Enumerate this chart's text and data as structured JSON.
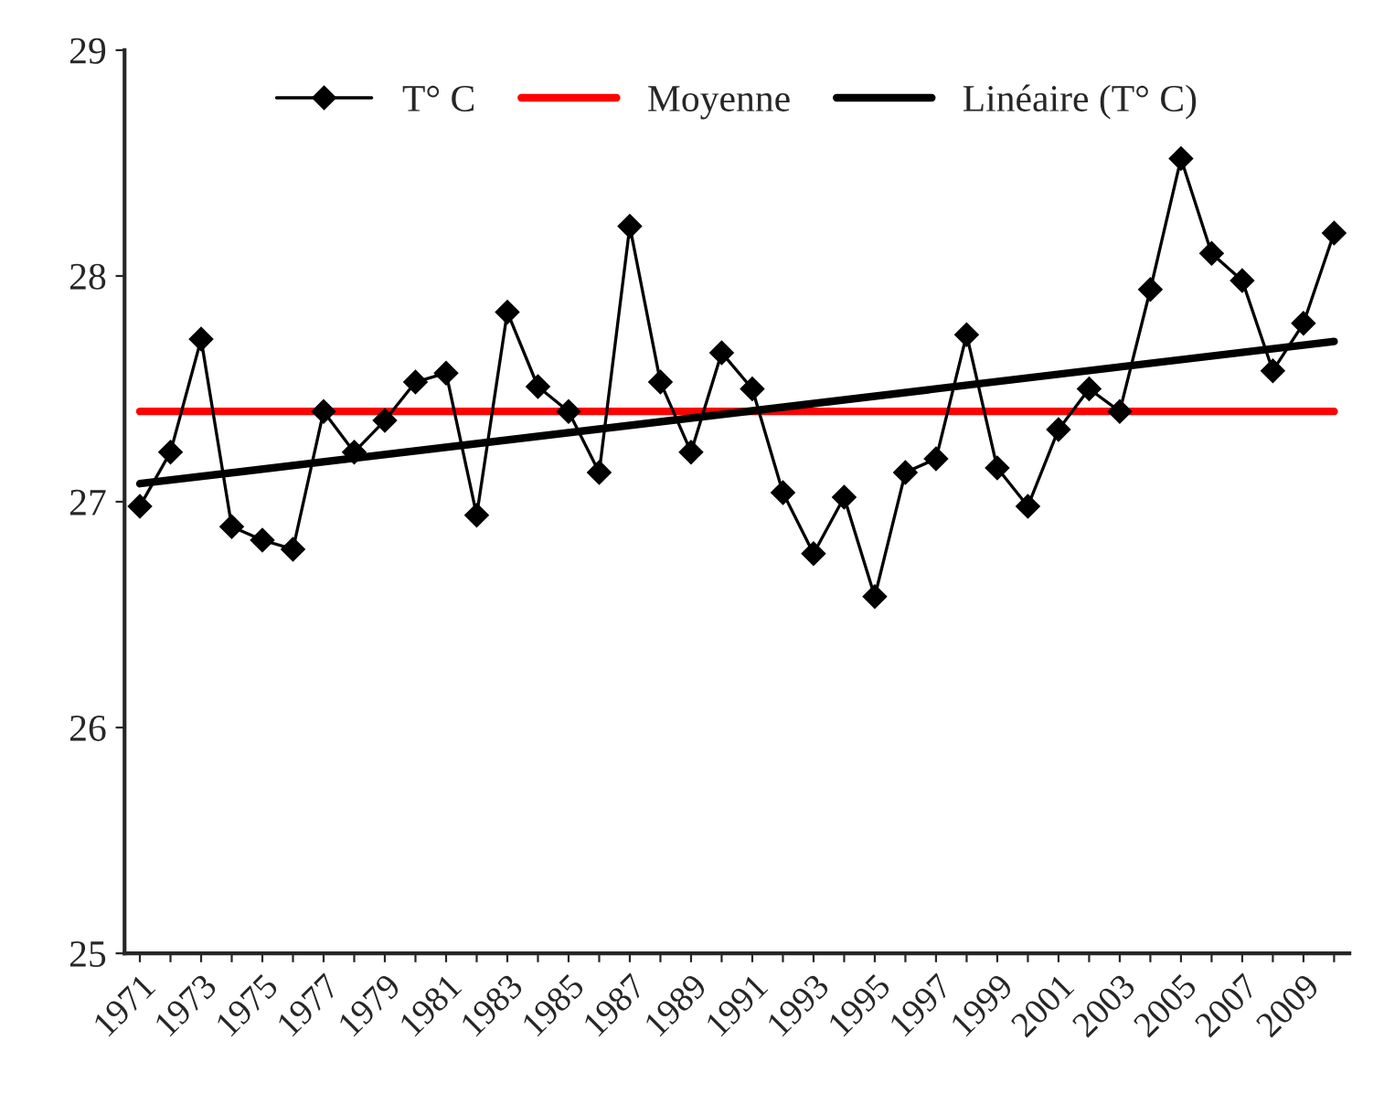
{
  "chart_data": {
    "type": "line",
    "categories": [
      "1971",
      null,
      "1973",
      null,
      "1975",
      null,
      "1977",
      null,
      "1979",
      null,
      "1981",
      null,
      "1983",
      null,
      "1985",
      null,
      "1987",
      null,
      "1989",
      null,
      "1991",
      null,
      "1993",
      null,
      "1995",
      null,
      "1997",
      null,
      "1999",
      null,
      "2001",
      null,
      "2003",
      null,
      "2005",
      null,
      "2007",
      null,
      "2009",
      null
    ],
    "series": [
      {
        "name": "T° C",
        "color": "#000000",
        "marker": "diamond",
        "values": [
          26.98,
          27.22,
          27.72,
          26.89,
          26.83,
          26.79,
          27.4,
          27.22,
          27.36,
          27.53,
          27.57,
          26.94,
          27.84,
          27.51,
          27.4,
          27.13,
          28.22,
          27.53,
          27.22,
          27.66,
          27.5,
          27.04,
          26.77,
          27.02,
          26.58,
          27.13,
          27.19,
          27.74,
          27.15,
          26.98,
          27.32,
          27.5,
          27.4,
          27.94,
          28.52,
          28.1,
          27.98,
          27.58,
          27.79,
          28.19
        ]
      },
      {
        "name": "Moyenne",
        "color": "#ff0000",
        "marker": "none",
        "values": [
          27.4,
          null,
          null,
          null,
          null,
          null,
          null,
          null,
          null,
          null,
          null,
          null,
          null,
          null,
          null,
          null,
          null,
          null,
          null,
          null,
          null,
          null,
          null,
          null,
          null,
          null,
          null,
          null,
          null,
          null,
          null,
          null,
          null,
          null,
          null,
          null,
          null,
          null,
          null,
          27.4
        ]
      },
      {
        "name": "Linéaire (T° C)",
        "color": "#000000",
        "marker": "none",
        "values": [
          27.08,
          null,
          null,
          null,
          null,
          null,
          null,
          null,
          null,
          null,
          null,
          null,
          null,
          null,
          null,
          null,
          null,
          null,
          null,
          null,
          null,
          null,
          null,
          null,
          null,
          null,
          null,
          null,
          null,
          null,
          null,
          null,
          null,
          null,
          null,
          null,
          null,
          null,
          null,
          27.71
        ]
      }
    ],
    "ylim": [
      25,
      29
    ],
    "yticks": [
      25,
      26,
      27,
      28,
      29
    ],
    "grid": false,
    "legend": "top"
  }
}
